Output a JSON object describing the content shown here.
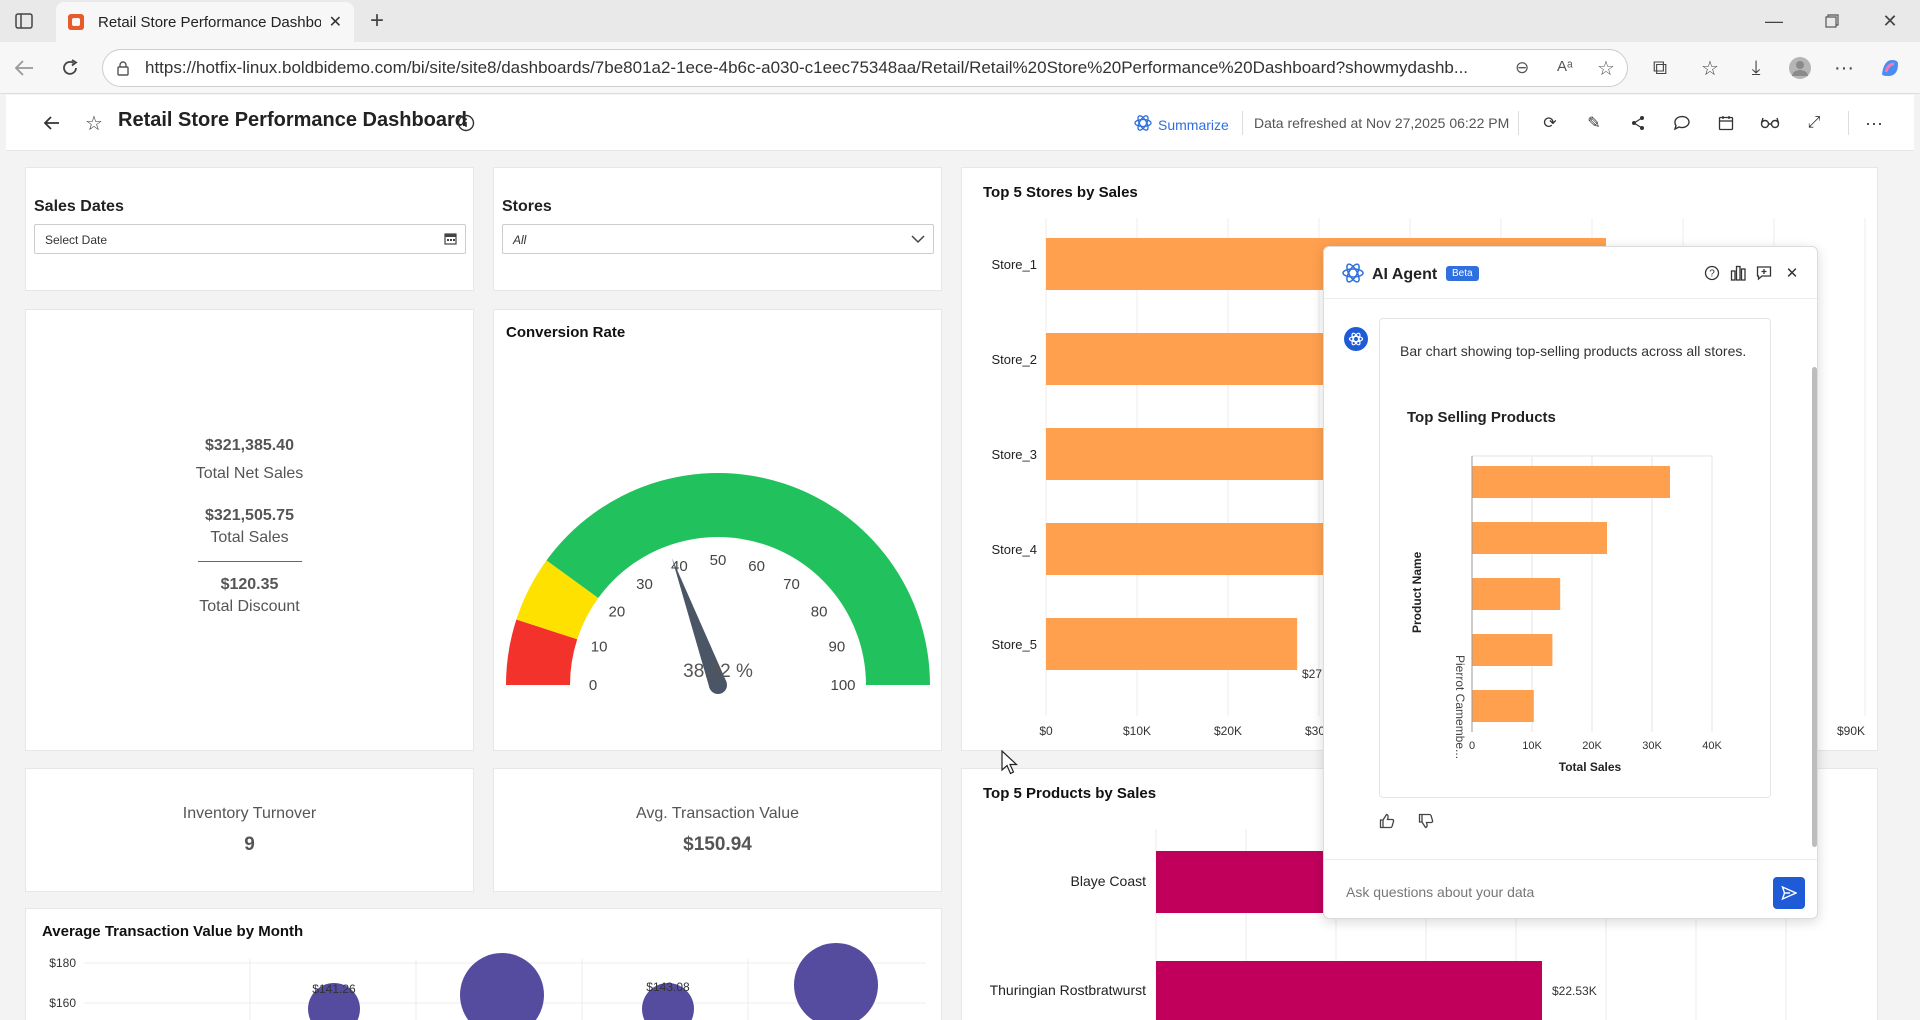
{
  "browser": {
    "tab_title": "Retail Store Performance Dashboard",
    "url": "https://hotfix-linux.boldbidemo.com/bi/site/site8/dashboards/7be801a2-1ece-4b6c-a030-c1eec75348aa/Retail/Retail%20Store%20Performance%20Dashboard?showmydashb..."
  },
  "header": {
    "title": "Retail Store Performance Dashboard",
    "summarize_label": "Summarize",
    "refreshed_text": "Data refreshed at Nov 27,2025 06:22 PM"
  },
  "filters": {
    "sales_dates": {
      "label": "Sales Dates",
      "placeholder": "Select Date"
    },
    "stores": {
      "label": "Stores",
      "value": "All"
    }
  },
  "kpis": {
    "net_sales_value": "$321,385.40",
    "net_sales_label": "Total Net Sales",
    "total_sales_value": "$321,505.75",
    "total_sales_label": "Total Sales",
    "discount_value": "$120.35",
    "discount_label": "Total Discount",
    "inventory_label": "Inventory Turnover",
    "inventory_value": "9",
    "avg_txn_label": "Avg. Transaction Value",
    "avg_txn_value": "$150.94"
  },
  "conversion": {
    "title": "Conversion Rate",
    "value": 38.92,
    "value_label": "38.92 %",
    "ticks": [
      "0",
      "10",
      "20",
      "30",
      "40",
      "50",
      "60",
      "70",
      "80",
      "90",
      "100"
    ],
    "bands": [
      {
        "from": 0,
        "to": 10,
        "color": "#f2322b"
      },
      {
        "from": 10,
        "to": 20,
        "color": "#ffe100"
      },
      {
        "from": 20,
        "to": 100,
        "color": "#21c25d"
      }
    ]
  },
  "top_stores": {
    "title": "Top 5 Stores by Sales",
    "color": "#ffa04e",
    "partial_label": "$27",
    "axis_ticks": [
      "$0",
      "$10K",
      "$20K",
      "$30K",
      "$90K"
    ]
  },
  "top_products": {
    "title": "Top 5 Products by Sales",
    "color": "#c1005c",
    "label_thuringian_value": "$22.53K"
  },
  "avg_txn_month": {
    "title": "Average Transaction Value by Month",
    "y_ticks": [
      "$180",
      "$160"
    ],
    "labels": [
      "$141.26",
      "$143.08"
    ],
    "color": "#554b9f"
  },
  "ai_agent": {
    "title": "AI Agent",
    "beta": "Beta",
    "message": "Bar chart showing top-selling products across all stores.",
    "input_placeholder": "Ask questions about your data"
  },
  "chart_data": [
    {
      "type": "bar",
      "title": "Top 5 Stores by Sales",
      "orientation": "horizontal",
      "categories": [
        "Store_1",
        "Store_2",
        "Store_3",
        "Store_4",
        "Store_5"
      ],
      "values": [
        null,
        null,
        null,
        null,
        27600
      ],
      "xlim": [
        0,
        90000
      ],
      "x_ticks": [
        "$0",
        "$10K",
        "$20K",
        "$30K",
        "$90K"
      ],
      "grid": true
    },
    {
      "type": "bar",
      "title": "Top 5 Products by Sales",
      "orientation": "horizontal",
      "categories": [
        "Blaye Coast",
        "Thuringian Rostbratwurst"
      ],
      "values": [
        null,
        22530
      ],
      "grid": true
    },
    {
      "type": "bar",
      "title": "Top Selling Products",
      "orientation": "horizontal",
      "xlabel": "Total Sales",
      "ylabel": "Product Name",
      "category_label_visible": "Pierrot Camembe...",
      "values": [
        33000,
        22500,
        14700,
        13400,
        10300
      ],
      "xlim": [
        0,
        40000
      ],
      "x_ticks": [
        "0",
        "10K",
        "20K",
        "30K",
        "40K"
      ],
      "color": "#ffa04e",
      "grid": true
    },
    {
      "type": "scatter",
      "title": "Average Transaction Value by Month",
      "y_ticks": [
        "$180",
        "$160"
      ],
      "labels": [
        "$141.26",
        "$143.08"
      ]
    }
  ]
}
